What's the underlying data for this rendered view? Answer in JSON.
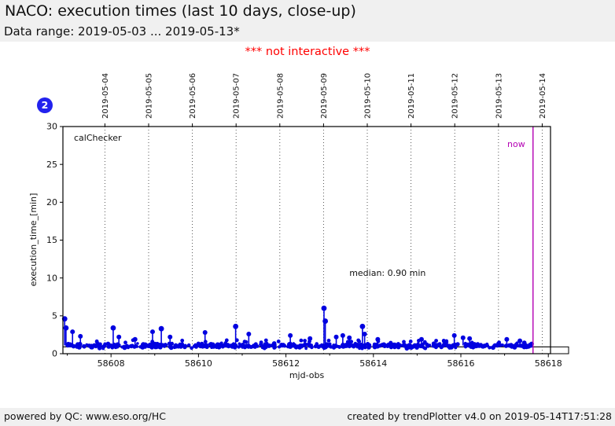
{
  "header": {
    "title": "NACO: execution times (last 10 days, close-up)",
    "subtitle": "Data range: 2019-05-03 ... 2019-05-13*"
  },
  "notice": "*** not interactive ***",
  "badge": "2",
  "footer": {
    "left": "powered by QC: www.eso.org/HC",
    "right": "created by trendPlotter v4.0 on 2019-05-14T17:51:28"
  },
  "colors": {
    "data_blue": "#0000e0",
    "badge_blue": "#2222ee",
    "magenta": "#b400b4",
    "red": "#ff0000",
    "panel_gray": "#f0f0f0",
    "grid_black": "#444444"
  },
  "chart_data": {
    "type": "scatter",
    "title": "",
    "xlabel": "mjd-obs",
    "ylabel": "execution_time_[min]",
    "inner_label": "calChecker",
    "xlim": [
      58606.9,
      58618.05
    ],
    "ylim": [
      0,
      30
    ],
    "grid": "vertical-dotted-dates-only",
    "x_major_ticks": [
      58608,
      58610,
      58612,
      58614,
      58616,
      58618
    ],
    "x_minor_ticks": [
      58607,
      58609,
      58611,
      58613,
      58615,
      58617
    ],
    "y_ticks": [
      0,
      5,
      10,
      15,
      20,
      25,
      30
    ],
    "date_gridlines": [
      {
        "label": "2019-05-04",
        "mjd": 58607.86
      },
      {
        "label": "2019-05-05",
        "mjd": 58608.86
      },
      {
        "label": "2019-05-06",
        "mjd": 58609.86
      },
      {
        "label": "2019-05-07",
        "mjd": 58610.86
      },
      {
        "label": "2019-05-08",
        "mjd": 58611.86
      },
      {
        "label": "2019-05-09",
        "mjd": 58612.86
      },
      {
        "label": "2019-05-10",
        "mjd": 58613.86
      },
      {
        "label": "2019-05-11",
        "mjd": 58614.86
      },
      {
        "label": "2019-05-12",
        "mjd": 58615.86
      },
      {
        "label": "2019-05-13",
        "mjd": 58616.86
      },
      {
        "label": "2019-05-14",
        "mjd": 58617.86
      }
    ],
    "now_marker": {
      "label": "now",
      "mjd": 58617.65
    },
    "median": {
      "label": "median: 0.90 min",
      "value": 0.9,
      "text_pos": {
        "mjd": 58613.45,
        "y": 10.6
      }
    },
    "band": {
      "comment": "dense cloud of points: one per calibration execution, ~0.7-1.6 min",
      "mjd_start": 58606.92,
      "mjd_end": 58617.62,
      "y_center": 1.0,
      "y_min": 0.68,
      "y_max": 1.55,
      "n_points": 540,
      "seed": 42
    },
    "spikes": [
      [
        58606.94,
        4.6
      ],
      [
        58606.97,
        3.4
      ],
      [
        58607.12,
        2.9
      ],
      [
        58607.3,
        2.3
      ],
      [
        58608.05,
        3.4
      ],
      [
        58608.18,
        2.2
      ],
      [
        58608.55,
        1.9
      ],
      [
        58608.95,
        2.9
      ],
      [
        58609.15,
        3.3
      ],
      [
        58609.35,
        2.2
      ],
      [
        58610.15,
        2.8
      ],
      [
        58610.85,
        3.6
      ],
      [
        58611.15,
        2.6
      ],
      [
        58612.1,
        2.4
      ],
      [
        58612.55,
        2.0
      ],
      [
        58612.87,
        6.0
      ],
      [
        58612.9,
        4.3
      ],
      [
        58613.15,
        2.2
      ],
      [
        58613.3,
        2.4
      ],
      [
        58613.45,
        2.1
      ],
      [
        58613.75,
        3.6
      ],
      [
        58613.8,
        2.6
      ],
      [
        58614.1,
        1.9
      ],
      [
        58615.1,
        1.9
      ],
      [
        58615.85,
        2.4
      ],
      [
        58616.05,
        2.1
      ],
      [
        58616.2,
        2.0
      ],
      [
        58617.05,
        1.9
      ],
      [
        58617.35,
        1.7
      ]
    ]
  }
}
